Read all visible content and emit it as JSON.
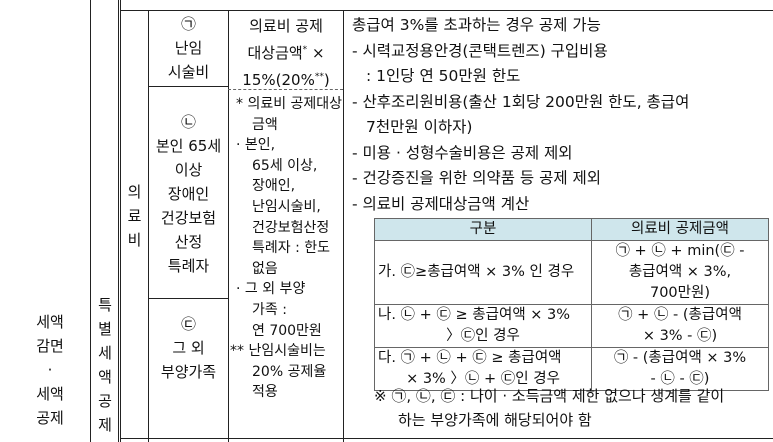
{
  "col_section": [
    "세액",
    "감면",
    "·",
    "세액",
    "공제"
  ],
  "col_special": [
    "특",
    "별",
    "세",
    "액",
    "공",
    "제"
  ],
  "col_medical": [
    "의",
    "료",
    "비"
  ],
  "targets": [
    {
      "marker": "㉠",
      "lines": [
        "난임",
        "시술비"
      ]
    },
    {
      "marker": "㉡",
      "lines": [
        "본인 65세",
        "이상",
        "장애인",
        "건강보험",
        "산정",
        "특례자"
      ]
    },
    {
      "marker": "㉢",
      "lines": [
        "그 외",
        "부양가족"
      ]
    }
  ],
  "formula_top": [
    "의료비 공제",
    "대상금액",
    "× 15%(20%",
    ")"
  ],
  "formula_notes": [
    "* 의료비 공제대상",
    "금액",
    "· 본인,",
    "65세 이상,",
    "장애인,",
    "난임시술비,",
    "건강보험산정",
    "특례자 : 한도",
    "없음",
    "· 그 외 부양",
    "가족 :",
    "연 700만원",
    "** 난임시술비는",
    "20% 공제율",
    "적용"
  ],
  "body_lines": [
    "총급여 3%를 초과하는 경우 공제 가능",
    "- 시력교정용안경(콘택트렌즈) 구입비용",
    "  : 1인당 연 50만원 한도",
    "- 산후조리원비용(출산 1회당 200만원 한도, 총급여",
    "  7천만원 이하자)",
    "- 미용 · 성형수술비용은 공제 제외",
    "- 건강증진을 위한 의약품 등 공제 제외",
    "- 의료비 공제대상금액 계산"
  ],
  "calc_table": {
    "headers": [
      "구분",
      "의료비 공제금액"
    ],
    "rows": [
      {
        "case": [
          "가. ㉢≥총급여액 × 3% 인 경우"
        ],
        "amount": [
          "㉠ + ㉡ + min(㉢ -",
          "총급여액 × 3%,",
          "700만원)"
        ]
      },
      {
        "case": [
          "나. ㉡ + ㉢ ≥ 총급여액 × 3%",
          "〉㉢인 경우"
        ],
        "amount": [
          "㉠ + ㉡ - (총급여액",
          "× 3% - ㉢)"
        ]
      },
      {
        "case": [
          "다. ㉠ + ㉡ + ㉢ ≥ 총급여액",
          "× 3% 〉㉡ + ㉢인 경우"
        ],
        "amount": [
          "㉠ - (총급여액 × 3%",
          "- ㉡ - ㉢)"
        ]
      }
    ]
  },
  "footnote": [
    "※ ㉠, ㉡, ㉢ : 나이 · 소득금액 제한 없으나 생계를 같이",
    "하는 부양가족에 해당되어야 함"
  ]
}
